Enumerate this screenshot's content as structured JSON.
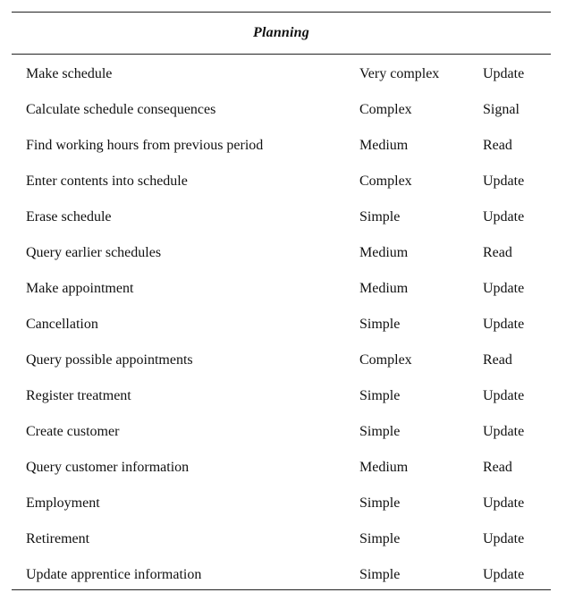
{
  "table": {
    "title": "Planning",
    "rows": [
      {
        "name": "Make schedule",
        "complexity": "Very complex",
        "type": "Update"
      },
      {
        "name": "Calculate schedule consequences",
        "complexity": "Complex",
        "type": "Signal"
      },
      {
        "name": "Find working hours from previous period",
        "complexity": "Medium",
        "type": "Read"
      },
      {
        "name": "Enter contents into schedule",
        "complexity": "Complex",
        "type": "Update"
      },
      {
        "name": "Erase schedule",
        "complexity": "Simple",
        "type": "Update"
      },
      {
        "name": "Query earlier schedules",
        "complexity": "Medium",
        "type": "Read"
      },
      {
        "name": "Make appointment",
        "complexity": "Medium",
        "type": "Update"
      },
      {
        "name": "Cancellation",
        "complexity": "Simple",
        "type": "Update"
      },
      {
        "name": "Query possible appointments",
        "complexity": "Complex",
        "type": "Read"
      },
      {
        "name": "Register treatment",
        "complexity": "Simple",
        "type": "Update"
      },
      {
        "name": "Create customer",
        "complexity": "Simple",
        "type": "Update"
      },
      {
        "name": "Query customer information",
        "complexity": "Medium",
        "type": "Read"
      },
      {
        "name": "Employment",
        "complexity": "Simple",
        "type": "Update"
      },
      {
        "name": "Retirement",
        "complexity": "Simple",
        "type": "Update"
      },
      {
        "name": "Update apprentice information",
        "complexity": "Simple",
        "type": "Update"
      }
    ]
  }
}
